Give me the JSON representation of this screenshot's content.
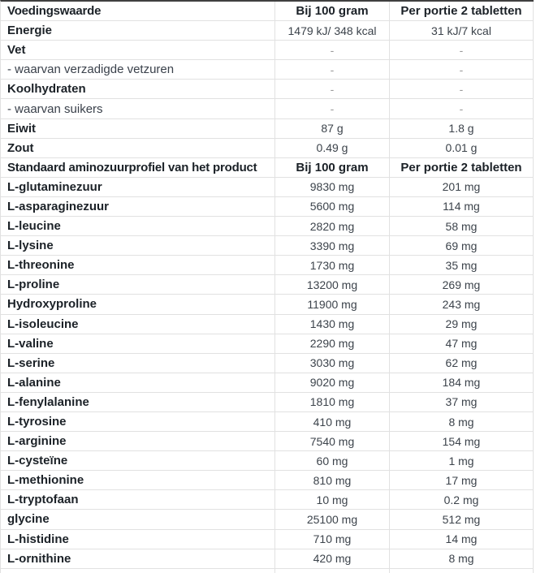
{
  "colors": {
    "table_top_border": "#3f3f3f",
    "grid_line": "#e1e1e1",
    "label_bold_text": "#1b2127",
    "value_text": "#3c434b",
    "dash_text": "#999999",
    "background": "#ffffff"
  },
  "table": {
    "sections": [
      {
        "header": {
          "label": "Voedingswaarde",
          "col2": "Bij 100 gram",
          "col3": "Per portie 2 tabletten"
        },
        "rows": [
          {
            "label": "Energie",
            "bold": true,
            "per100": "1479 kJ/ 348 kcal",
            "portion": "31 kJ/7 kcal"
          },
          {
            "label": "Vet",
            "bold": true,
            "per100": "-",
            "portion": "-"
          },
          {
            "label": "- waarvan verzadigde vetzuren",
            "bold": false,
            "per100": "-",
            "portion": "-"
          },
          {
            "label": "Koolhydraten",
            "bold": true,
            "per100": "-",
            "portion": "-"
          },
          {
            "label": "- waarvan suikers",
            "bold": false,
            "per100": "-",
            "portion": "-"
          },
          {
            "label": "Eiwit",
            "bold": true,
            "per100": "87 g",
            "portion": "1.8 g"
          },
          {
            "label": "Zout",
            "bold": true,
            "per100": "0.49 g",
            "portion": "0.01 g"
          }
        ]
      },
      {
        "header": {
          "label": "Standaard aminozuurprofiel van het product",
          "col2": "Bij 100 gram",
          "col3": "Per portie 2 tabletten"
        },
        "rows": [
          {
            "label": "L-glutaminezuur",
            "bold": true,
            "per100": "9830 mg",
            "portion": "201 mg"
          },
          {
            "label": "L-asparaginezuur",
            "bold": true,
            "per100": "5600 mg",
            "portion": "114 mg"
          },
          {
            "label": "L-leucine",
            "bold": true,
            "per100": "2820 mg",
            "portion": "58 mg"
          },
          {
            "label": "L-lysine",
            "bold": true,
            "per100": "3390 mg",
            "portion": "69 mg"
          },
          {
            "label": "L-threonine",
            "bold": true,
            "per100": "1730 mg",
            "portion": "35 mg"
          },
          {
            "label": "L-proline",
            "bold": true,
            "per100": "13200 mg",
            "portion": "269 mg"
          },
          {
            "label": "Hydroxyproline",
            "bold": true,
            "per100": "11900 mg",
            "portion": "243 mg"
          },
          {
            "label": "L-isoleucine",
            "bold": true,
            "per100": "1430 mg",
            "portion": "29 mg"
          },
          {
            "label": "L-valine",
            "bold": true,
            "per100": "2290 mg",
            "portion": "47 mg"
          },
          {
            "label": "L-serine",
            "bold": true,
            "per100": "3030 mg",
            "portion": "62 mg"
          },
          {
            "label": "L-alanine",
            "bold": true,
            "per100": "9020 mg",
            "portion": "184 mg"
          },
          {
            "label": "L-fenylalanine",
            "bold": true,
            "per100": "1810 mg",
            "portion": "37 mg"
          },
          {
            "label": "L-tyrosine",
            "bold": true,
            "per100": "410 mg",
            "portion": "8 mg"
          },
          {
            "label": "L-arginine",
            "bold": true,
            "per100": "7540 mg",
            "portion": "154 mg"
          },
          {
            "label": "L-cysteïne",
            "bold": true,
            "per100": "60 mg",
            "portion": "1 mg"
          },
          {
            "label": "L-methionine",
            "bold": true,
            "per100": "810 mg",
            "portion": "17 mg"
          },
          {
            "label": "L-tryptofaan",
            "bold": true,
            "per100": "10 mg",
            "portion": "0.2 mg"
          },
          {
            "label": "glycine",
            "bold": true,
            "per100": "25100 mg",
            "portion": "512 mg"
          },
          {
            "label": "L-histidine",
            "bold": true,
            "per100": "710 mg",
            "portion": "14 mg"
          },
          {
            "label": "L-ornithine",
            "bold": true,
            "per100": "420 mg",
            "portion": "8 mg"
          }
        ]
      }
    ]
  }
}
